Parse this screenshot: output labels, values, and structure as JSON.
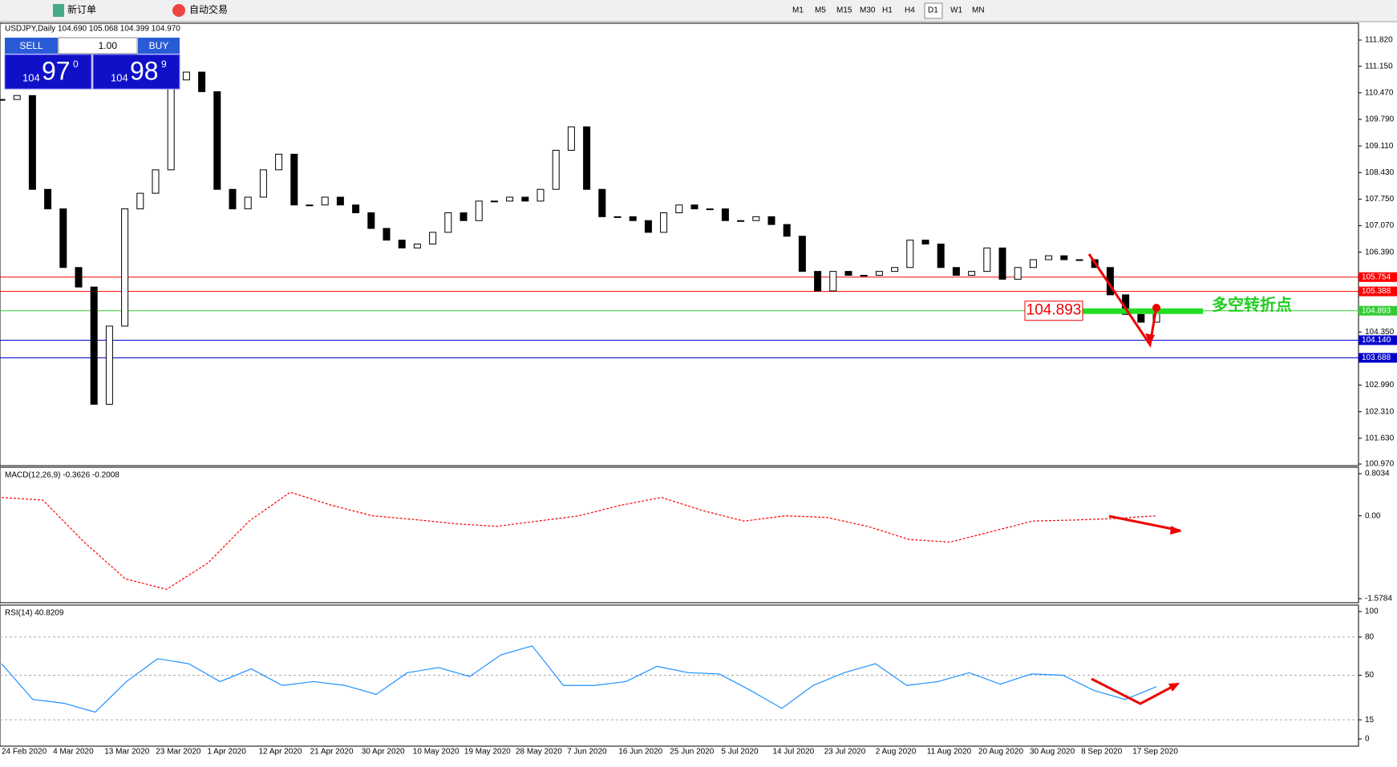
{
  "toolbar": {
    "new_order": "新订单",
    "auto_trading": "自动交易",
    "timeframes": [
      "M1",
      "M5",
      "M15",
      "M30",
      "H1",
      "H4",
      "D1",
      "W1",
      "MN"
    ],
    "active": "D1"
  },
  "trade_panel": {
    "sell": "SELL",
    "buy": "BUY",
    "lots": "1.00",
    "bid_big": "104",
    "bid_main": "97",
    "bid_small": "0",
    "ask_big": "104",
    "ask_main": "98",
    "ask_small": "9"
  },
  "chart_data": [
    {
      "type": "candlestick",
      "title": "USDJPY,Daily 104.690 105.068 104.399 104.970",
      "values": [
        110.3,
        110.4,
        108.0,
        107.5,
        106.0,
        105.5,
        102.5,
        104.5,
        107.5,
        107.9,
        108.5,
        110.8,
        111.0,
        110.5,
        108.0,
        107.5,
        107.8,
        108.5,
        108.9,
        107.6,
        107.6,
        107.8,
        107.6,
        107.4,
        107.0,
        106.7,
        106.5,
        106.6,
        106.9,
        107.4,
        107.2,
        107.7,
        107.7,
        107.8,
        107.7,
        108.0,
        109.0,
        109.6,
        108.0,
        107.3,
        107.3,
        107.2,
        106.9,
        107.4,
        107.6,
        107.5,
        107.5,
        107.2,
        107.2,
        107.3,
        107.1,
        106.8,
        105.9,
        105.4,
        105.9,
        105.8,
        105.8,
        105.9,
        106.0,
        106.7,
        106.6,
        106.0,
        105.8,
        105.9,
        106.5,
        105.7,
        106.0,
        106.2,
        106.3,
        106.2,
        106.2,
        106.0,
        105.3,
        104.8,
        104.6,
        104.97
      ],
      "ylim": [
        100.97,
        111.82
      ],
      "yticks": [
        {
          "value": 111.82,
          "label": "111.820"
        },
        {
          "value": 111.15,
          "label": "111.150"
        },
        {
          "value": 110.47,
          "label": "110.470"
        },
        {
          "value": 109.79,
          "label": "109.790"
        },
        {
          "value": 109.11,
          "label": "109.110"
        },
        {
          "value": 108.43,
          "label": "108.430"
        },
        {
          "value": 107.75,
          "label": "107.750"
        },
        {
          "value": 107.07,
          "label": "107.070"
        },
        {
          "value": 106.39,
          "label": "106.390"
        },
        {
          "value": 104.35,
          "label": "104.350"
        },
        {
          "value": 102.99,
          "label": "102.990"
        },
        {
          "value": 102.31,
          "label": "102.310"
        },
        {
          "value": 101.63,
          "label": "101.630"
        },
        {
          "value": 100.97,
          "label": "100.970"
        }
      ],
      "levels": [
        {
          "value": 105.754,
          "label": "105.754",
          "color": "#ff0000"
        },
        {
          "value": 105.388,
          "label": "105.388",
          "color": "#ff0000"
        },
        {
          "value": 104.893,
          "label": "104.893",
          "color": "#33cc33"
        },
        {
          "value": 104.14,
          "label": "104.140",
          "color": "#0000cc"
        },
        {
          "value": 103.688,
          "label": "103.688",
          "color": "#0000cc"
        }
      ],
      "annotation_value": {
        "value": 104.893,
        "label": "104.893"
      },
      "annotation_text": "多空转折点",
      "x_labels": [
        "24 Feb 2020",
        "4 Mar 2020",
        "13 Mar 2020",
        "23 Mar 2020",
        "1 Apr 2020",
        "12 Apr 2020",
        "21 Apr 2020",
        "30 Apr 2020",
        "10 May 2020",
        "19 May 2020",
        "28 May 2020",
        "7 Jun 2020",
        "16 Jun 2020",
        "25 Jun 2020",
        "5 Jul 2020",
        "14 Jul 2020",
        "23 Jul 2020",
        "2 Aug 2020",
        "11 Aug 2020",
        "20 Aug 2020",
        "30 Aug 2020",
        "8 Sep 2020",
        "17 Sep 2020"
      ]
    },
    {
      "type": "line",
      "title": "MACD(12,26,9) -0.3626 -0.2008",
      "color": "#ff0000",
      "dashed": true,
      "values": [
        0.35,
        0.3,
        -0.5,
        -1.2,
        -1.4,
        -0.9,
        -0.1,
        0.45,
        0.2,
        0.0,
        -0.07,
        -0.15,
        -0.2,
        -0.1,
        0.0,
        0.2,
        0.35,
        0.1,
        -0.1,
        0.0,
        -0.03,
        -0.2,
        -0.45,
        -0.5,
        -0.3,
        -0.1,
        -0.08,
        -0.05,
        0.0
      ],
      "ylim": [
        -1.5784,
        0.8034
      ],
      "yticks": [
        0.8034,
        {
          "value": 0,
          "label": "0.00"
        },
        -1.5784
      ]
    },
    {
      "type": "line",
      "title": "RSI(14) 40.8209",
      "color": "#1e90ff",
      "dashed": false,
      "values": [
        59,
        31,
        28,
        21,
        45,
        63,
        59,
        45,
        55,
        42,
        45,
        42,
        35,
        52,
        56,
        49,
        66,
        73,
        42,
        42,
        45,
        57,
        52,
        51,
        38,
        24,
        42,
        52,
        59,
        42,
        45,
        52,
        43,
        51,
        50,
        38,
        31,
        41
      ],
      "ylim": [
        0,
        100
      ],
      "yticks": [
        100,
        80,
        50,
        15,
        0
      ],
      "grid": true
    }
  ]
}
